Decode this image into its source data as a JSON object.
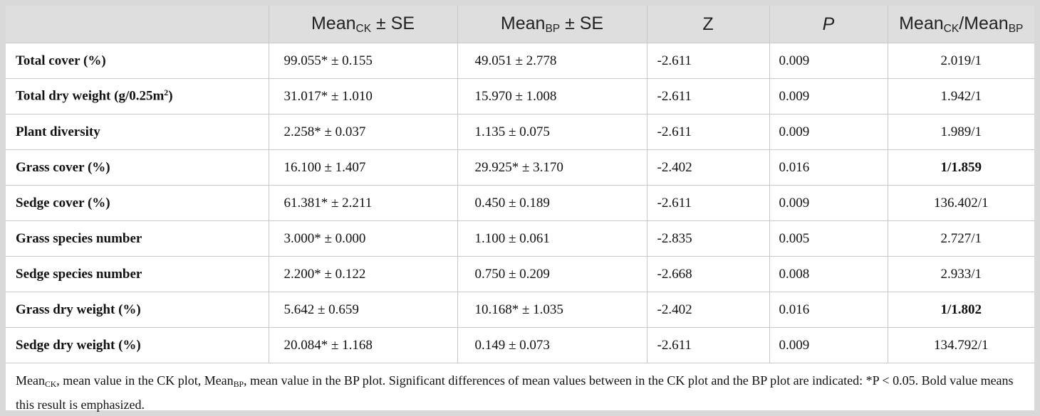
{
  "table": {
    "headers": {
      "col0": "",
      "ck_prefix": "Mean",
      "ck_sub": "CK",
      "ck_suffix": " ± SE",
      "bp_prefix": "Mean",
      "bp_sub": "BP",
      "bp_suffix": " ± SE",
      "z": "Z",
      "p": "P",
      "ratio_a": "Mean",
      "ratio_a_sub": "CK",
      "ratio_mid": "/Mean",
      "ratio_b_sub": "BP"
    },
    "rows": [
      {
        "label": "Total cover (%)",
        "ck": "99.055* ± 0.155",
        "bp": "49.051 ± 2.778",
        "z": "-2.611",
        "p": "0.009",
        "ratio": "2.019/1",
        "bold": false
      },
      {
        "label": "Total dry weight (g/0.25m",
        "label_sup": "2",
        "label_end": ")",
        "ck": "31.017* ± 1.010",
        "bp": "15.970 ± 1.008",
        "z": "-2.611",
        "p": "0.009",
        "ratio": "1.942/1",
        "bold": false
      },
      {
        "label": "Plant diversity",
        "ck": "2.258* ± 0.037",
        "bp": "1.135 ± 0.075",
        "z": "-2.611",
        "p": "0.009",
        "ratio": "1.989/1",
        "bold": false
      },
      {
        "label": "Grass cover (%)",
        "ck": "16.100 ± 1.407",
        "bp": "29.925* ± 3.170",
        "z": "-2.402",
        "p": "0.016",
        "ratio": "1/1.859",
        "bold": true
      },
      {
        "label": "Sedge cover (%)",
        "ck": "61.381* ± 2.211",
        "bp": "0.450 ± 0.189",
        "z": "-2.611",
        "p": "0.009",
        "ratio": "136.402/1",
        "bold": false
      },
      {
        "label": "Grass species number",
        "ck": "3.000* ± 0.000",
        "bp": "1.100 ± 0.061",
        "z": "-2.835",
        "p": "0.005",
        "ratio": "2.727/1",
        "bold": false
      },
      {
        "label": "Sedge species number",
        "ck": "2.200* ± 0.122",
        "bp": "0.750 ± 0.209",
        "z": "-2.668",
        "p": "0.008",
        "ratio": "2.933/1",
        "bold": false
      },
      {
        "label": "Grass dry weight (%)",
        "ck": "5.642 ± 0.659",
        "bp": "10.168* ± 1.035",
        "z": "-2.402",
        "p": "0.016",
        "ratio": "1/1.802",
        "bold": true
      },
      {
        "label": "Sedge dry weight (%)",
        "ck": "20.084* ± 1.168",
        "bp": "0.149 ± 0.073",
        "z": "-2.611",
        "p": "0.009",
        "ratio": "134.792/1",
        "bold": false
      }
    ]
  },
  "footnote": {
    "part1": "Mean",
    "sub1": "CK",
    "part2": ", mean value in the CK plot, Mean",
    "sub2": "BP",
    "part3": ", mean value in the BP plot. Significant differences of mean values between in the CK plot and the BP plot are indicated: *P < 0.05. Bold value means this result is emphasized."
  },
  "colors": {
    "header_bg": "#dedede",
    "page_bg": "#d9d9d9",
    "border": "#c8c8c8"
  }
}
